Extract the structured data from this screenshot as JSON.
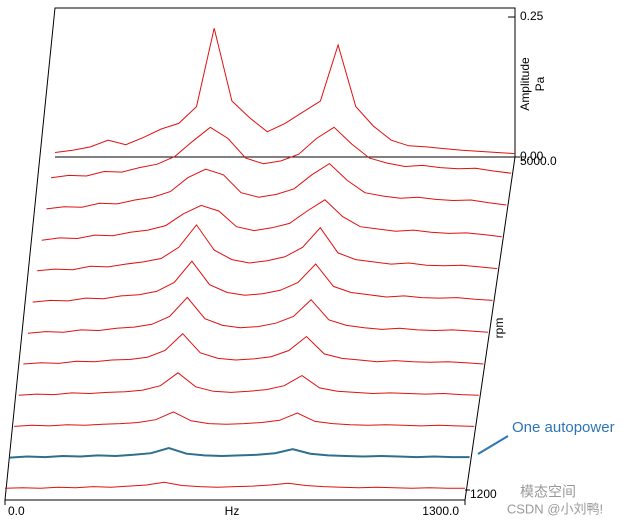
{
  "chart_data": {
    "type": "waterfall",
    "xlabel": "Hz",
    "ylabel": "Amplitude",
    "yunit": "Pa",
    "zlabel": "rpm",
    "annotation": "One autopower",
    "watermark": "CSDN @小刘鸭!",
    "watermark2": "模态空间",
    "x": [
      0,
      50,
      100,
      150,
      200,
      250,
      300,
      350,
      400,
      450,
      500,
      550,
      600,
      650,
      700,
      750,
      800,
      850,
      900,
      950,
      1000,
      1050,
      1100,
      1150,
      1200,
      1250,
      1300
    ],
    "xlim": [
      0,
      1300
    ],
    "xticks": [
      {
        "value": 0,
        "label": "0.0"
      },
      {
        "value": 1300,
        "label": "1300.0"
      }
    ],
    "ylim": [
      0,
      0.25
    ],
    "yticks": [
      {
        "value": 0,
        "label": "0.00"
      },
      0.25
    ],
    "zlim": [
      1200,
      5000
    ],
    "zticks": [
      1200,
      {
        "value": 5000,
        "label": "5000.0"
      }
    ],
    "annotation_series": 1,
    "series": [
      {
        "rpm": 1200,
        "color": "#e01010",
        "values": [
          0.003,
          0.004,
          0.003,
          0.005,
          0.004,
          0.006,
          0.005,
          0.007,
          0.009,
          0.014,
          0.008,
          0.006,
          0.005,
          0.006,
          0.007,
          0.009,
          0.012,
          0.008,
          0.006,
          0.005,
          0.004,
          0.005,
          0.004,
          0.003,
          0.004,
          0.003,
          0.003
        ]
      },
      {
        "rpm": 1550,
        "color": "#2e6f8e",
        "values": [
          0.003,
          0.005,
          0.004,
          0.006,
          0.005,
          0.007,
          0.006,
          0.008,
          0.011,
          0.02,
          0.01,
          0.007,
          0.006,
          0.007,
          0.008,
          0.011,
          0.018,
          0.01,
          0.007,
          0.006,
          0.005,
          0.006,
          0.005,
          0.004,
          0.005,
          0.004,
          0.004
        ]
      },
      {
        "rpm": 1900,
        "color": "#e01010",
        "values": [
          0.004,
          0.006,
          0.005,
          0.007,
          0.006,
          0.008,
          0.009,
          0.011,
          0.016,
          0.03,
          0.014,
          0.009,
          0.008,
          0.009,
          0.011,
          0.015,
          0.028,
          0.013,
          0.009,
          0.007,
          0.006,
          0.007,
          0.006,
          0.005,
          0.006,
          0.005,
          0.004
        ]
      },
      {
        "rpm": 2250,
        "color": "#e01010",
        "values": [
          0.005,
          0.007,
          0.006,
          0.009,
          0.008,
          0.01,
          0.011,
          0.014,
          0.022,
          0.045,
          0.02,
          0.012,
          0.01,
          0.012,
          0.015,
          0.022,
          0.04,
          0.018,
          0.012,
          0.01,
          0.008,
          0.009,
          0.008,
          0.007,
          0.008,
          0.006,
          0.005
        ]
      },
      {
        "rpm": 2600,
        "color": "#e01010",
        "values": [
          0.006,
          0.008,
          0.007,
          0.011,
          0.01,
          0.013,
          0.014,
          0.018,
          0.03,
          0.06,
          0.026,
          0.016,
          0.013,
          0.015,
          0.019,
          0.03,
          0.055,
          0.024,
          0.016,
          0.013,
          0.01,
          0.012,
          0.01,
          0.009,
          0.01,
          0.008,
          0.006
        ]
      },
      {
        "rpm": 2950,
        "color": "#e01010",
        "values": [
          0.006,
          0.009,
          0.008,
          0.012,
          0.011,
          0.015,
          0.017,
          0.022,
          0.036,
          0.07,
          0.032,
          0.02,
          0.016,
          0.018,
          0.024,
          0.036,
          0.066,
          0.03,
          0.02,
          0.016,
          0.013,
          0.015,
          0.012,
          0.011,
          0.012,
          0.01,
          0.008
        ]
      },
      {
        "rpm": 3300,
        "color": "#e01010",
        "values": [
          0.007,
          0.01,
          0.009,
          0.014,
          0.013,
          0.018,
          0.02,
          0.026,
          0.042,
          0.08,
          0.038,
          0.024,
          0.019,
          0.022,
          0.028,
          0.042,
          0.075,
          0.035,
          0.024,
          0.02,
          0.016,
          0.018,
          0.015,
          0.014,
          0.015,
          0.012,
          0.01
        ]
      },
      {
        "rpm": 3650,
        "color": "#e01010",
        "values": [
          0.008,
          0.011,
          0.01,
          0.016,
          0.015,
          0.02,
          0.024,
          0.03,
          0.05,
          0.09,
          0.045,
          0.028,
          0.022,
          0.026,
          0.033,
          0.05,
          0.085,
          0.04,
          0.028,
          0.024,
          0.02,
          0.022,
          0.018,
          0.017,
          0.018,
          0.015,
          0.012
        ]
      },
      {
        "rpm": 4000,
        "color": "#e01010",
        "values": [
          0.008,
          0.012,
          0.011,
          0.017,
          0.016,
          0.022,
          0.026,
          0.034,
          0.055,
          0.07,
          0.06,
          0.032,
          0.025,
          0.03,
          0.038,
          0.06,
          0.08,
          0.05,
          0.032,
          0.028,
          0.024,
          0.026,
          0.022,
          0.02,
          0.021,
          0.018,
          0.014
        ]
      },
      {
        "rpm": 4350,
        "color": "#e01010",
        "values": [
          0.009,
          0.013,
          0.012,
          0.019,
          0.018,
          0.025,
          0.03,
          0.04,
          0.065,
          0.08,
          0.07,
          0.038,
          0.03,
          0.035,
          0.045,
          0.07,
          0.09,
          0.06,
          0.038,
          0.032,
          0.028,
          0.03,
          0.026,
          0.024,
          0.025,
          0.02,
          0.016
        ]
      },
      {
        "rpm": 4700,
        "color": "#e01010",
        "values": [
          0.01,
          0.014,
          0.013,
          0.021,
          0.02,
          0.028,
          0.034,
          0.048,
          0.075,
          0.1,
          0.08,
          0.045,
          0.035,
          0.04,
          0.052,
          0.08,
          0.1,
          0.07,
          0.045,
          0.036,
          0.03,
          0.032,
          0.028,
          0.026,
          0.027,
          0.022,
          0.018
        ]
      },
      {
        "rpm": 5000,
        "color": "#e01010",
        "values": [
          0.008,
          0.012,
          0.018,
          0.03,
          0.022,
          0.035,
          0.05,
          0.06,
          0.09,
          0.23,
          0.1,
          0.07,
          0.045,
          0.06,
          0.08,
          0.1,
          0.2,
          0.09,
          0.055,
          0.03,
          0.02,
          0.018,
          0.015,
          0.012,
          0.01,
          0.008,
          0.006
        ]
      }
    ]
  }
}
